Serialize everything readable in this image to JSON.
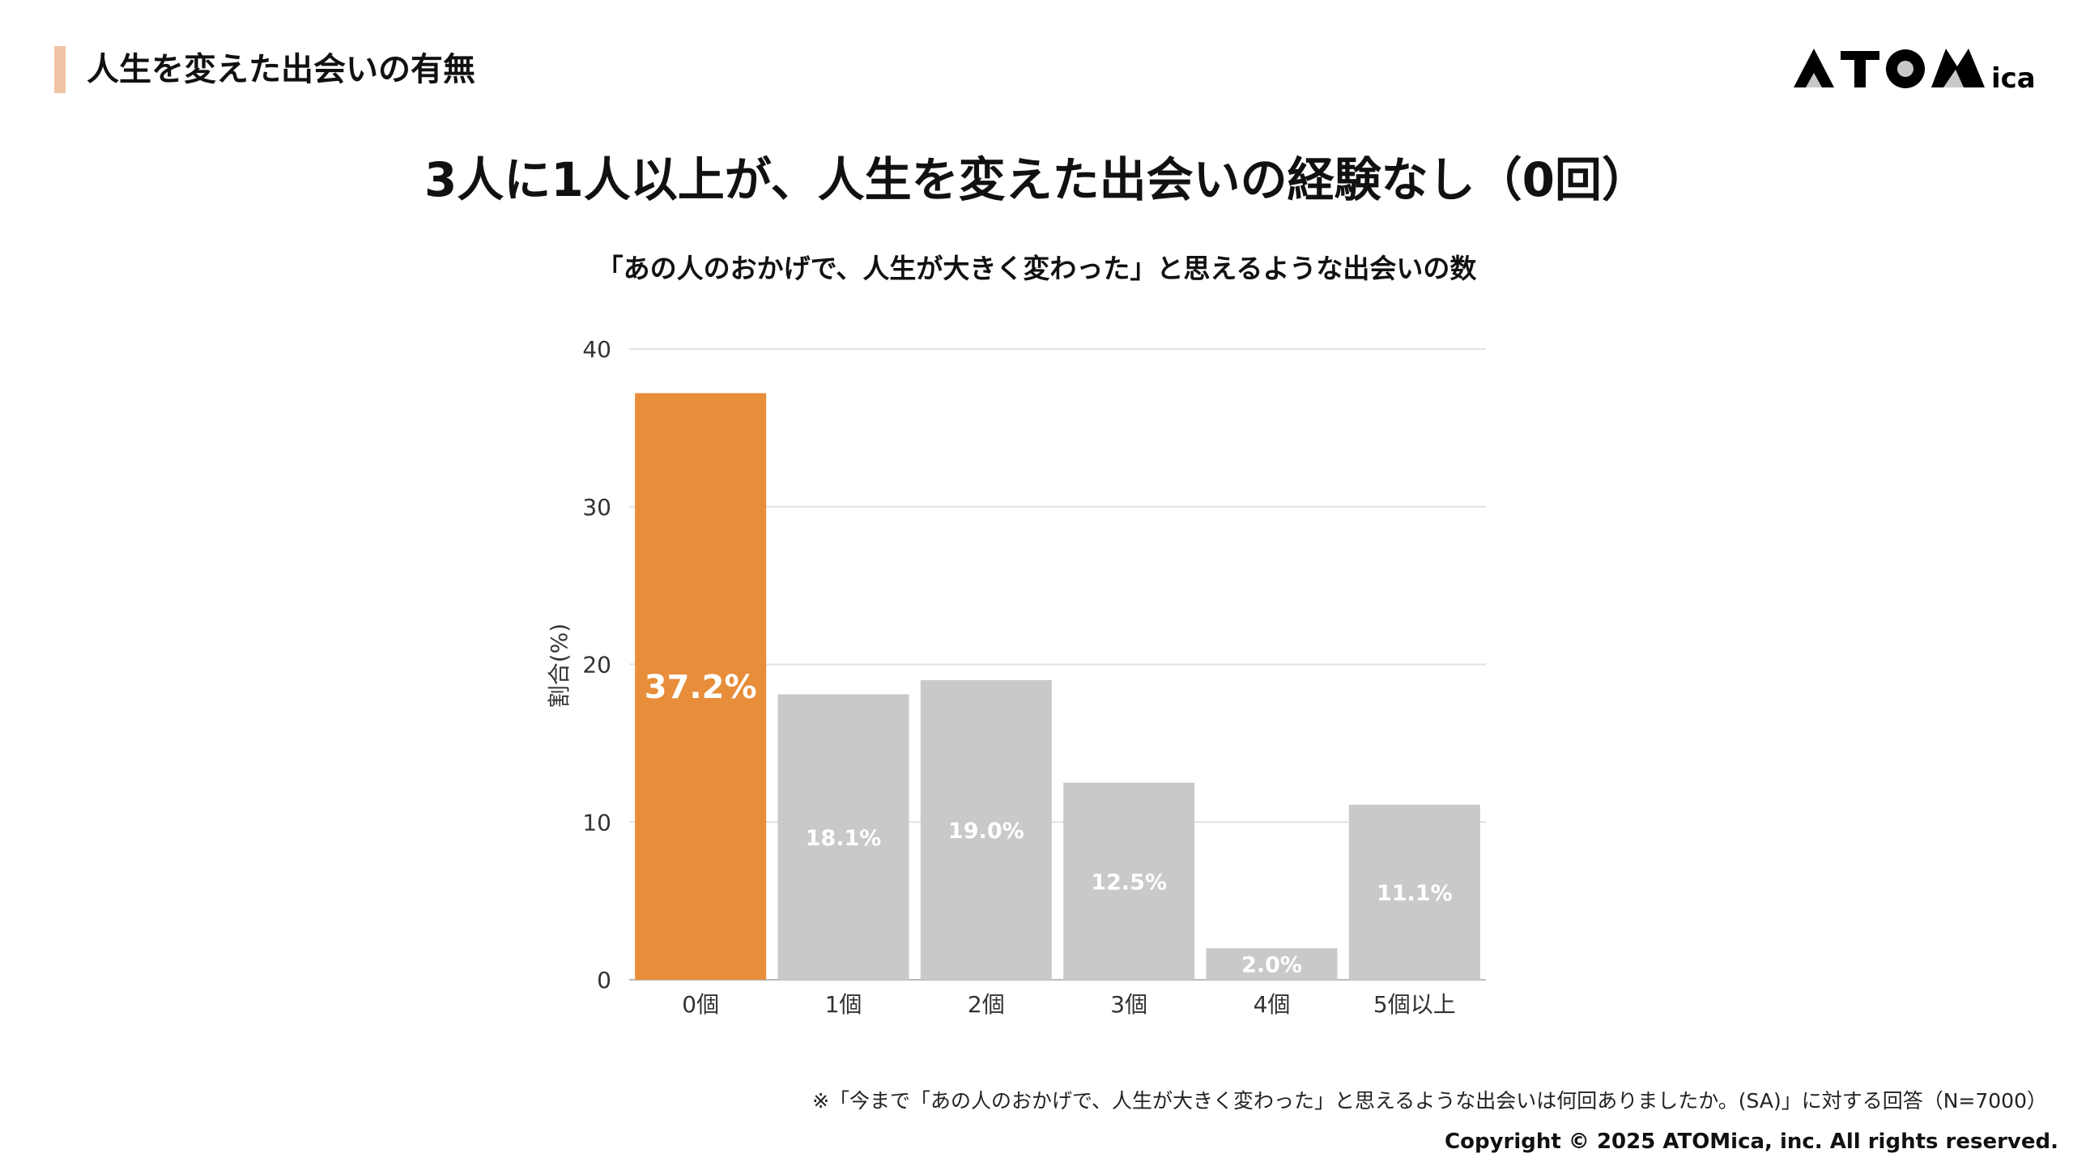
{
  "header": {
    "section_title": "人生を変えた出会いの有無",
    "logo_text": "ATOMica",
    "accent_color": "#F0C3A5"
  },
  "main_title": "3人に1人以上が、人生を変えた出会いの経験なし（0回）",
  "chart_data": {
    "type": "bar",
    "title": "「あの人のおかげで、人生が大きく変わった」と思えるような出会いの数",
    "xlabel": "",
    "ylabel": "割合(%)",
    "ylim": [
      0,
      40
    ],
    "yticks": [
      0,
      10,
      20,
      30,
      40
    ],
    "grid": true,
    "categories": [
      "0個",
      "1個",
      "2個",
      "3個",
      "4個",
      "5個以上"
    ],
    "values": [
      37.2,
      18.1,
      19.0,
      12.5,
      2.0,
      11.1
    ],
    "data_labels": [
      "37.2%",
      "18.1%",
      "19.0%",
      "12.5%",
      "2.0%",
      "11.1%"
    ],
    "colors": [
      "#E88D3A",
      "#C9C9C9",
      "#C9C9C9",
      "#C9C9C9",
      "#C9C9C9",
      "#C9C9C9"
    ]
  },
  "footer": {
    "footnote": "※「今まで「あの人のおかげで、人生が大きく変わった」と思えるような出会いは何回ありましたか。(SA)」に対する回答（N=7000）",
    "copyright": "Copyright © 2025 ATOMica, inc. All rights reserved."
  }
}
